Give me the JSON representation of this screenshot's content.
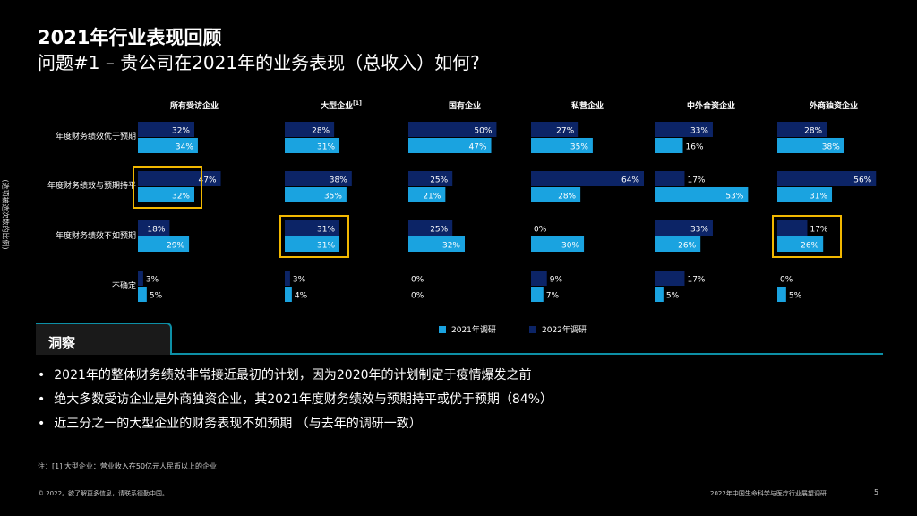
{
  "title": "2021年行业表现回顾",
  "subtitle": "问题#1 – 贵公司在2021年的业务表现（总收入）如何?",
  "y_axis_label": "(选项被选次数的比例)",
  "legend": {
    "item_2021": "2021年调研",
    "item_2022": "2022年调研"
  },
  "insight": {
    "tab_label": "洞察",
    "bullets": [
      "2021年的整体财务绩效非常接近最初的计划，因为2020年的计划制定于疫情爆发之前",
      "绝大多数受访企业是外商独资企业，其2021年度财务绩效与预期持平或优于预期（84%）",
      "近三分之一的大型企业的财务表现不如预期 （与去年的调研一致）"
    ]
  },
  "footnote": "注：[1] 大型企业：营业收入在50亿元人民币以上的企业",
  "footer": {
    "copyright": "© 2022。欲了解更多信息，请联系德勤中国。",
    "report_title": "2022年中国生命科学与医疗行业展望调研",
    "page_number": "5"
  },
  "colors": {
    "y2021": "#1aa3e0",
    "y2022": "#0c2466",
    "highlight": "#f2b800",
    "accent": "#0d8fa6"
  },
  "chart_data": {
    "type": "bar",
    "categories": [
      "年度财务绩效优于预期",
      "年度财务绩效与预期持平",
      "年度财务绩效不如预期",
      "不确定"
    ],
    "groups": [
      {
        "name": "所有受访企业",
        "superscript": "",
        "v2022": [
          32,
          47,
          18,
          3
        ],
        "v2021": [
          34,
          32,
          29,
          5
        ]
      },
      {
        "name": "大型企业",
        "superscript": "[1]",
        "v2022": [
          28,
          38,
          31,
          3
        ],
        "v2021": [
          31,
          35,
          31,
          4
        ]
      },
      {
        "name": "国有企业",
        "superscript": "",
        "v2022": [
          50,
          25,
          25,
          0
        ],
        "v2021": [
          47,
          21,
          32,
          0
        ]
      },
      {
        "name": "私营企业",
        "superscript": "",
        "v2022": [
          27,
          64,
          0,
          9
        ],
        "v2021": [
          35,
          28,
          30,
          7
        ]
      },
      {
        "name": "中外合资企业",
        "superscript": "",
        "v2022": [
          33,
          17,
          33,
          17
        ],
        "v2021": [
          16,
          53,
          26,
          5
        ]
      },
      {
        "name": "外商独资企业",
        "superscript": "",
        "v2022": [
          28,
          56,
          17,
          0
        ],
        "v2021": [
          38,
          31,
          26,
          5
        ]
      }
    ],
    "highlighted": [
      {
        "group": 0,
        "category": 1
      },
      {
        "group": 1,
        "category": 2
      },
      {
        "group": 5,
        "category": 2
      }
    ],
    "unit": "%",
    "xlim": [
      0,
      64
    ]
  }
}
